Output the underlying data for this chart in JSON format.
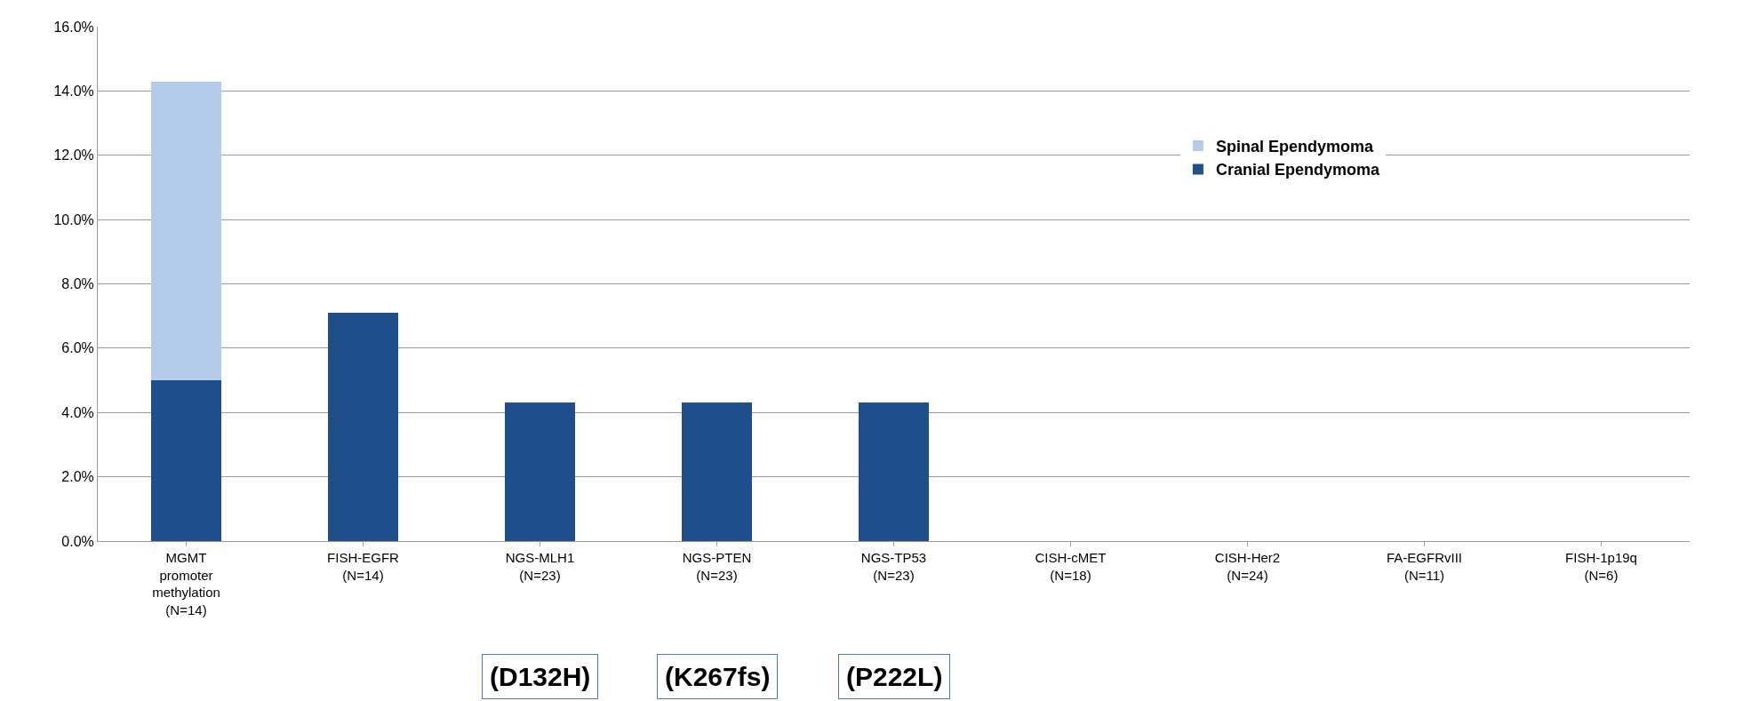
{
  "chart_data": {
    "type": "bar",
    "stacked": true,
    "categories": [
      "MGMT\npromoter\nmethylation\n(N=14)",
      "FISH-EGFR\n(N=14)",
      "NGS-MLH1\n(N=23)",
      "NGS-PTEN\n(N=23)",
      "NGS-TP53\n(N=23)",
      "CISH-cMET\n(N=18)",
      "CISH-Her2\n(N=24)",
      "FA-EGFRvIII\n(N=11)",
      "FISH-1p19q\n(N=6)"
    ],
    "series": [
      {
        "name": "Cranial Ependymoma",
        "color": "#1f4e8c",
        "values": [
          5.0,
          7.1,
          4.3,
          4.3,
          4.3,
          0,
          0,
          0,
          0
        ]
      },
      {
        "name": "Spinal Ependymoma",
        "color": "#b4cbea",
        "values": [
          9.3,
          0,
          0,
          0,
          0,
          0,
          0,
          0,
          0
        ]
      }
    ],
    "ylim": [
      0,
      16
    ],
    "yticks": [
      {
        "value": 0,
        "label": "0.0%"
      },
      {
        "value": 2,
        "label": "2.0%"
      },
      {
        "value": 4,
        "label": "4.0%"
      },
      {
        "value": 6,
        "label": "6.0%"
      },
      {
        "value": 8,
        "label": "8.0%"
      },
      {
        "value": 10,
        "label": "10.0%"
      },
      {
        "value": 12,
        "label": "12.0%"
      },
      {
        "value": 14,
        "label": "14.0%"
      },
      {
        "value": 16,
        "label": "16.0%"
      }
    ],
    "grid": "y",
    "legend": "top right",
    "annotations": [
      "(D132H)",
      "(K267fs)",
      "(P222L)"
    ]
  }
}
